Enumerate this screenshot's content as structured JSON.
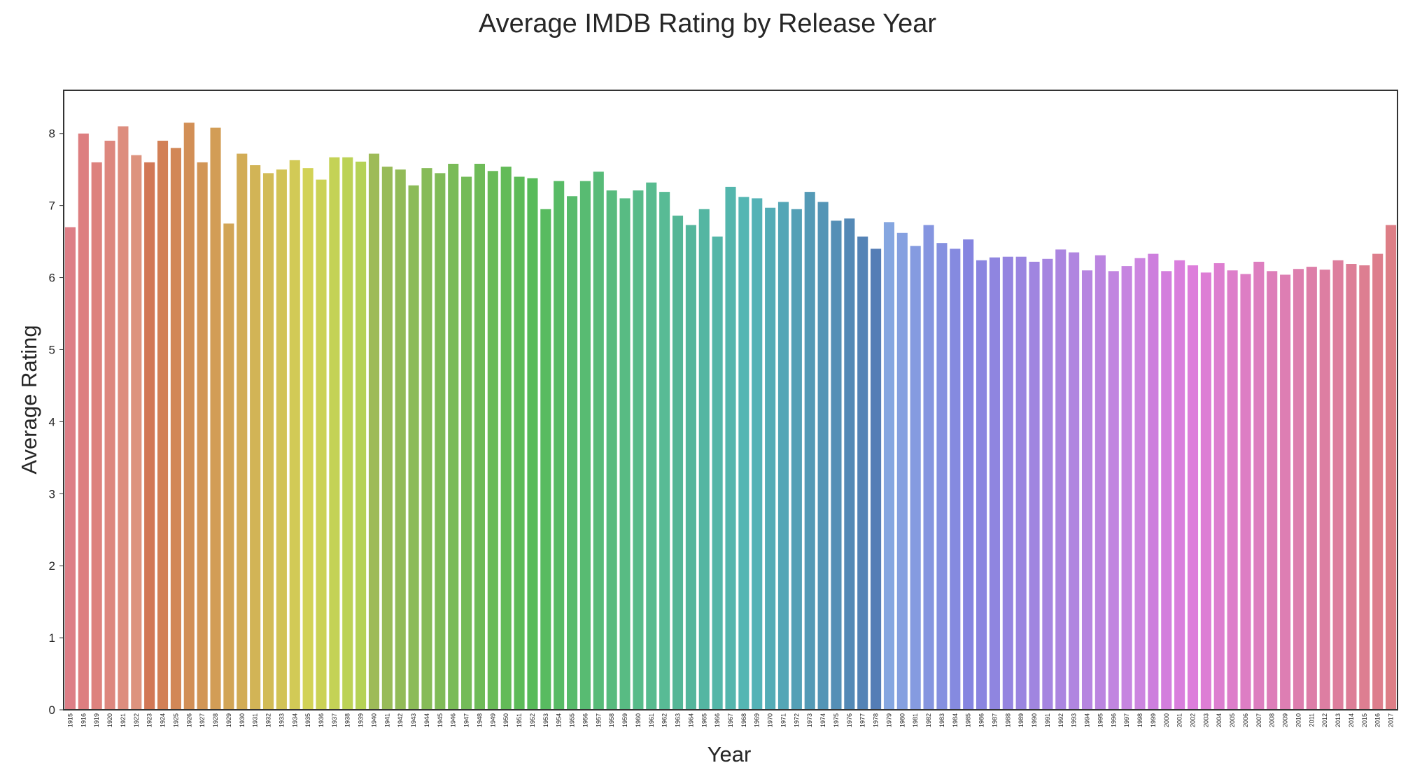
{
  "chart_data": {
    "type": "bar",
    "title": "Average IMDB Rating by Release Year",
    "xlabel": "Year",
    "ylabel": "Average Rating",
    "ylim": [
      0,
      8.6
    ],
    "yticks": [
      0,
      1,
      2,
      3,
      4,
      5,
      6,
      7,
      8
    ],
    "grid": false,
    "legend": "none",
    "frame_color": "#333333",
    "categories": [
      "1915",
      "1916",
      "1919",
      "1920",
      "1921",
      "1922",
      "1923",
      "1924",
      "1925",
      "1926",
      "1927",
      "1928",
      "1929",
      "1930",
      "1931",
      "1932",
      "1933",
      "1934",
      "1935",
      "1936",
      "1937",
      "1938",
      "1939",
      "1940",
      "1941",
      "1942",
      "1943",
      "1944",
      "1945",
      "1946",
      "1947",
      "1948",
      "1949",
      "1950",
      "1951",
      "1952",
      "1953",
      "1954",
      "1955",
      "1956",
      "1957",
      "1958",
      "1959",
      "1960",
      "1961",
      "1962",
      "1963",
      "1964",
      "1965",
      "1966",
      "1967",
      "1968",
      "1969",
      "1970",
      "1971",
      "1972",
      "1973",
      "1974",
      "1975",
      "1976",
      "1977",
      "1978",
      "1979",
      "1980",
      "1981",
      "1982",
      "1983",
      "1984",
      "1985",
      "1986",
      "1987",
      "1988",
      "1989",
      "1990",
      "1991",
      "1992",
      "1993",
      "1994",
      "1995",
      "1996",
      "1997",
      "1998",
      "1999",
      "2000",
      "2001",
      "2002",
      "2003",
      "2004",
      "2005",
      "2006",
      "2007",
      "2008",
      "2009",
      "2010",
      "2011",
      "2012",
      "2013",
      "2014",
      "2015",
      "2016",
      "2017"
    ],
    "values": [
      6.7,
      8.0,
      7.6,
      7.9,
      8.1,
      7.7,
      7.6,
      7.9,
      7.8,
      8.15,
      7.6,
      8.08,
      6.75,
      7.72,
      7.56,
      7.45,
      7.5,
      7.63,
      7.52,
      7.36,
      7.67,
      7.67,
      7.61,
      7.72,
      7.54,
      7.5,
      7.28,
      7.52,
      7.45,
      7.58,
      7.4,
      7.58,
      7.48,
      7.54,
      7.4,
      7.38,
      6.95,
      7.34,
      7.13,
      7.34,
      7.47,
      7.21,
      7.1,
      7.21,
      7.32,
      7.19,
      6.86,
      6.73,
      6.95,
      6.57,
      7.26,
      7.12,
      7.1,
      6.97,
      7.05,
      6.95,
      7.19,
      7.05,
      6.79,
      6.82,
      6.57,
      6.4,
      6.77,
      6.62,
      6.44,
      6.73,
      6.48,
      6.4,
      6.53,
      6.24,
      6.28,
      6.29,
      6.29,
      6.22,
      6.26,
      6.39,
      6.35,
      6.1,
      6.31,
      6.09,
      6.16,
      6.27,
      6.33,
      6.09,
      6.24,
      6.17,
      6.07,
      6.2,
      6.1,
      6.05,
      6.22,
      6.09,
      6.04,
      6.12,
      6.15,
      6.11,
      6.24,
      6.19,
      6.17,
      6.33,
      6.73
    ]
  }
}
